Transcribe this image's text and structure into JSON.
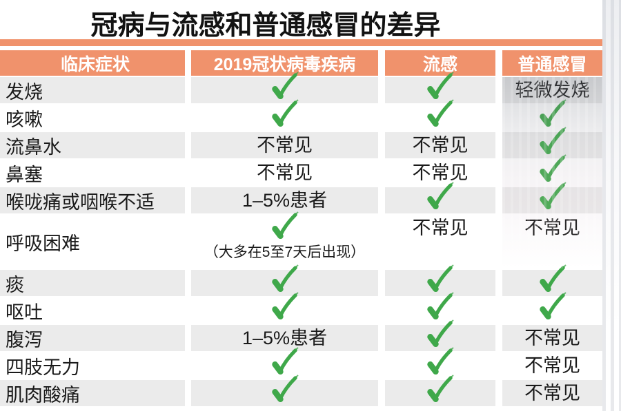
{
  "chart_data": {
    "type": "table",
    "title": "冠病与流感和普通感冒的差异",
    "columns": [
      "临床症状",
      "2019冠状病毒疾病",
      "流感",
      "普通感冒"
    ],
    "check_cell_value": "check",
    "rows": [
      {
        "symptom": "发烧",
        "covid": "check",
        "flu": "check",
        "cold": "轻微发烧",
        "shade": "gray"
      },
      {
        "symptom": "咳嗽",
        "covid": "check",
        "flu": "check",
        "cold": "check",
        "shade": "white"
      },
      {
        "symptom": "流鼻水",
        "covid": "不常见",
        "flu": "不常见",
        "cold": "check",
        "shade": "gray"
      },
      {
        "symptom": "鼻塞",
        "covid": "不常见",
        "flu": "不常见",
        "cold": "check",
        "shade": "white"
      },
      {
        "symptom": "喉咙痛或咽喉不适",
        "covid": "1–5%患者",
        "flu": "check",
        "cold": "check",
        "shade": "gray"
      },
      {
        "symptom": "呼吸困难",
        "covid": "check",
        "covid_note": "（大多在5至7天后出现）",
        "flu": "不常见",
        "cold": "不常见",
        "shade": "white",
        "double_height": true
      },
      {
        "symptom": "痰",
        "covid": "check",
        "flu": "check",
        "cold": "check",
        "shade": "gray"
      },
      {
        "symptom": "呕吐",
        "covid": "check",
        "flu": "check",
        "cold": "check",
        "shade": "white"
      },
      {
        "symptom": "腹泻",
        "covid": "1–5%患者",
        "flu": "check",
        "cold": "不常见",
        "shade": "gray"
      },
      {
        "symptom": "四肢无力",
        "covid": "check",
        "flu": "check",
        "cold": "不常见",
        "shade": "white"
      },
      {
        "symptom": "肌肉酸痛",
        "covid": "check",
        "flu": "check",
        "cold": "不常见",
        "shade": "gray"
      }
    ],
    "layout_hints": {
      "grid": "off",
      "legend": "none",
      "header_position": "top"
    }
  },
  "icons": {
    "check": "check-icon"
  },
  "colors": {
    "accent_orange": "#f0926c",
    "check_green": "#3fa84a",
    "row_gray": "#ebebeb",
    "header_text": "#ffffff",
    "body_text": "#1a1a1a"
  }
}
